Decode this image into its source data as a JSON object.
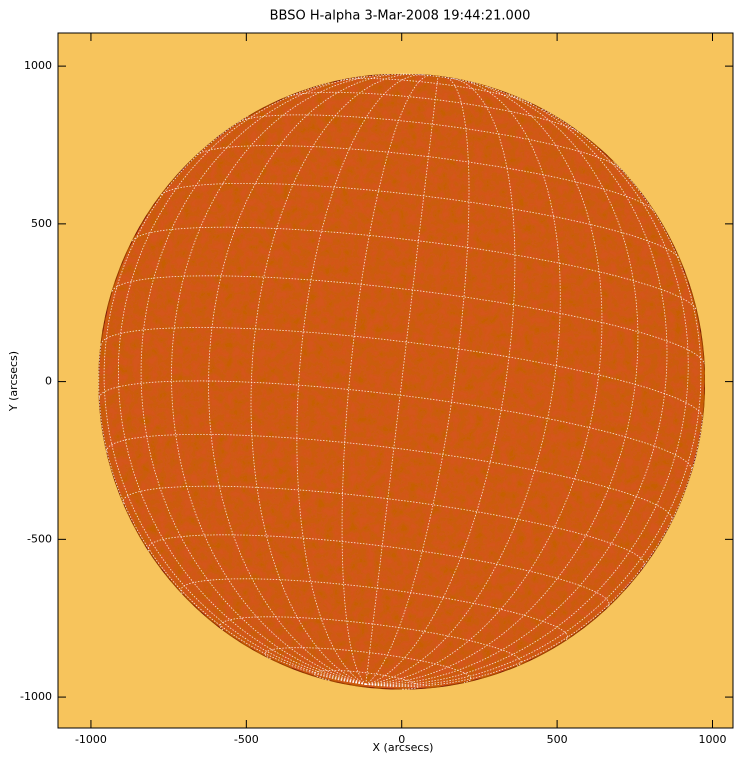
{
  "chart_data": {
    "type": "image",
    "title": "BBSO H-alpha  3-Mar-2008 19:44:21.000",
    "x_label": "X (arcsecs)",
    "y_label": "Y (arcsecs)",
    "xlim": [
      -1106,
      1066
    ],
    "ylim": [
      -1098,
      1105
    ],
    "xticks": [
      -1000,
      -500,
      0,
      500,
      1000
    ],
    "yticks": [
      -1000,
      -500,
      0,
      500,
      1000
    ],
    "disk_radius": 975,
    "background": "#f7c45c",
    "disk_color": "#d4561c"
  }
}
